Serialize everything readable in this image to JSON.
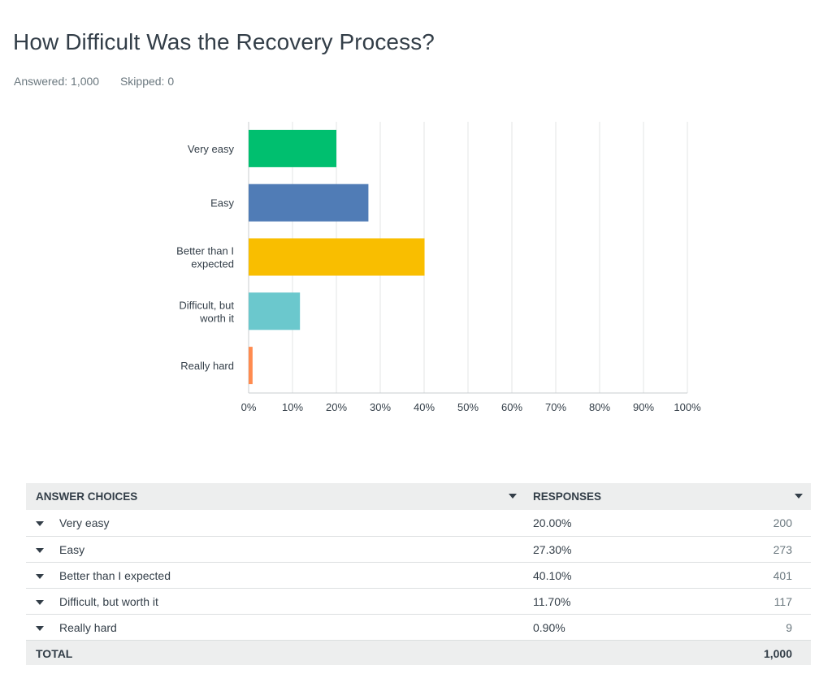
{
  "question": {
    "title": "How Difficult Was the Recovery Process?",
    "answered": "Answered: 1,000",
    "skipped": "Skipped: 0"
  },
  "chart_data": {
    "type": "bar",
    "orientation": "horizontal",
    "categories": [
      "Very easy",
      "Easy",
      "Better than I expected",
      "Difficult, but worth it",
      "Really hard"
    ],
    "category_label_lines": [
      [
        "Very easy"
      ],
      [
        "Easy"
      ],
      [
        "Better than I",
        "expected"
      ],
      [
        "Difficult, but",
        "worth it"
      ],
      [
        "Really hard"
      ]
    ],
    "values": [
      20.0,
      27.3,
      40.1,
      11.7,
      0.9
    ],
    "colors": [
      "#00bf6f",
      "#507cb6",
      "#f9be00",
      "#6bc8cd",
      "#ff8b4f"
    ],
    "xlim": [
      0,
      100
    ],
    "xticks": [
      0,
      10,
      20,
      30,
      40,
      50,
      60,
      70,
      80,
      90,
      100
    ],
    "xtick_labels": [
      "0%",
      "10%",
      "20%",
      "30%",
      "40%",
      "50%",
      "60%",
      "70%",
      "80%",
      "90%",
      "100%"
    ],
    "grid": true,
    "title": "",
    "xlabel": "",
    "ylabel": ""
  },
  "table": {
    "header": {
      "choices": "ANSWER CHOICES",
      "responses": "RESPONSES"
    },
    "rows": [
      {
        "label": "Very easy",
        "percent": "20.00%",
        "count": "200"
      },
      {
        "label": "Easy",
        "percent": "27.30%",
        "count": "273"
      },
      {
        "label": "Better than I expected",
        "percent": "40.10%",
        "count": "401"
      },
      {
        "label": "Difficult, but worth it",
        "percent": "11.70%",
        "count": "117"
      },
      {
        "label": "Really hard",
        "percent": "0.90%",
        "count": "9"
      }
    ],
    "total": {
      "label": "TOTAL",
      "count": "1,000"
    }
  }
}
